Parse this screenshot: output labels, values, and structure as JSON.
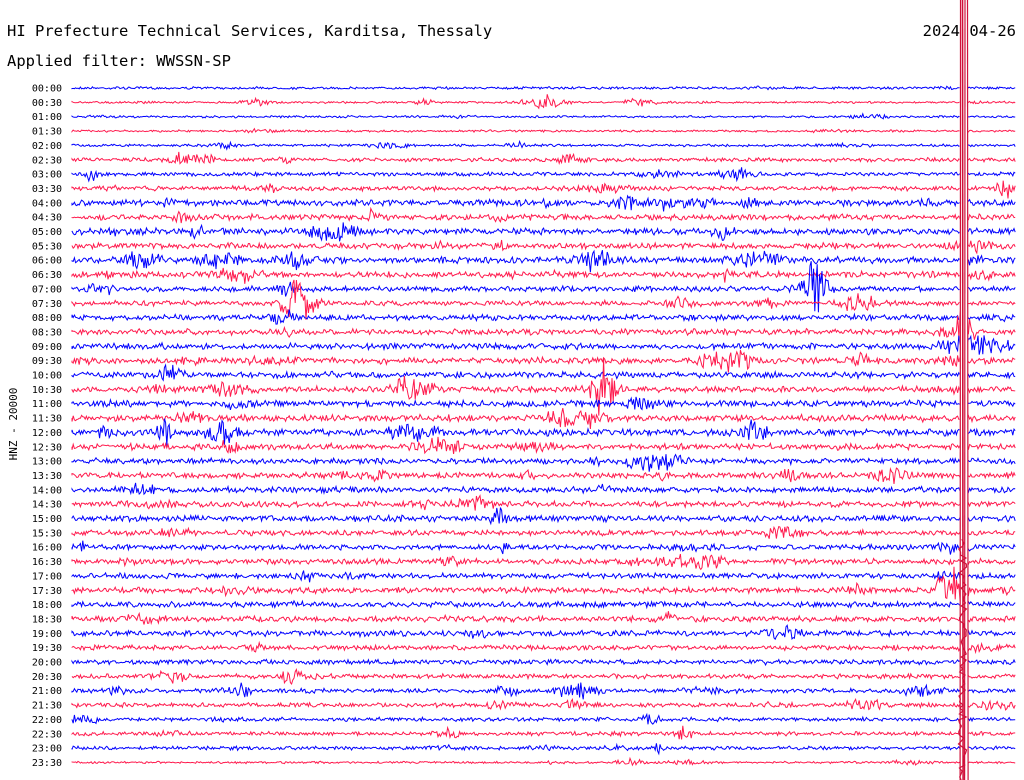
{
  "header": {
    "station": "HI Prefecture Technical Services, Karditsa, Thessaly",
    "date": "2024-04-26",
    "filter": "Applied filter: WWSSN-SP"
  },
  "chart_data": {
    "type": "line",
    "title": "HI Prefecture Technical Services, Karditsa, Thessaly",
    "ylabel": "HNZ - 20000",
    "colors": [
      "#0000ff",
      "#ff1a4d"
    ],
    "event_color": "#d0103a",
    "rows": [
      {
        "time": "00:00",
        "amplitude": 0.35
      },
      {
        "time": "00:30",
        "amplitude": 0.3
      },
      {
        "time": "01:00",
        "amplitude": 0.3
      },
      {
        "time": "01:30",
        "amplitude": 0.3
      },
      {
        "time": "02:00",
        "amplitude": 0.35
      },
      {
        "time": "02:30",
        "amplitude": 0.55
      },
      {
        "time": "03:00",
        "amplitude": 0.55
      },
      {
        "time": "03:30",
        "amplitude": 0.65
      },
      {
        "time": "04:00",
        "amplitude": 0.85
      },
      {
        "time": "04:30",
        "amplitude": 0.8
      },
      {
        "time": "05:00",
        "amplitude": 0.9
      },
      {
        "time": "05:30",
        "amplitude": 0.85
      },
      {
        "time": "06:00",
        "amplitude": 0.9
      },
      {
        "time": "06:30",
        "amplitude": 0.85
      },
      {
        "time": "07:00",
        "amplitude": 0.75
      },
      {
        "time": "07:30",
        "amplitude": 0.7
      },
      {
        "time": "08:00",
        "amplitude": 0.8
      },
      {
        "time": "08:30",
        "amplitude": 0.8
      },
      {
        "time": "09:00",
        "amplitude": 0.85
      },
      {
        "time": "09:30",
        "amplitude": 0.85
      },
      {
        "time": "10:00",
        "amplitude": 0.85
      },
      {
        "time": "10:30",
        "amplitude": 0.85
      },
      {
        "time": "11:00",
        "amplitude": 0.9
      },
      {
        "time": "11:30",
        "amplitude": 0.9
      },
      {
        "time": "12:00",
        "amplitude": 0.95
      },
      {
        "time": "12:30",
        "amplitude": 0.85
      },
      {
        "time": "13:00",
        "amplitude": 0.8
      },
      {
        "time": "13:30",
        "amplitude": 0.8
      },
      {
        "time": "14:00",
        "amplitude": 0.8
      },
      {
        "time": "14:30",
        "amplitude": 0.8
      },
      {
        "time": "15:00",
        "amplitude": 0.85
      },
      {
        "time": "15:30",
        "amplitude": 0.75
      },
      {
        "time": "16:00",
        "amplitude": 0.75
      },
      {
        "time": "16:30",
        "amplitude": 0.75
      },
      {
        "time": "17:00",
        "amplitude": 0.75
      },
      {
        "time": "17:30",
        "amplitude": 0.8
      },
      {
        "time": "18:00",
        "amplitude": 0.8
      },
      {
        "time": "18:30",
        "amplitude": 0.8
      },
      {
        "time": "19:00",
        "amplitude": 0.8
      },
      {
        "time": "19:30",
        "amplitude": 0.7
      },
      {
        "time": "20:00",
        "amplitude": 0.65
      },
      {
        "time": "20:30",
        "amplitude": 0.65
      },
      {
        "time": "21:00",
        "amplitude": 0.6
      },
      {
        "time": "21:30",
        "amplitude": 0.6
      },
      {
        "time": "22:00",
        "amplitude": 0.55
      },
      {
        "time": "22:30",
        "amplitude": 0.55
      },
      {
        "time": "23:00",
        "amplitude": 0.5
      },
      {
        "time": "23:30",
        "amplitude": 0.3
      }
    ],
    "x_range_minutes": [
      0,
      30
    ],
    "event_minute": 28.3,
    "grid": false
  }
}
